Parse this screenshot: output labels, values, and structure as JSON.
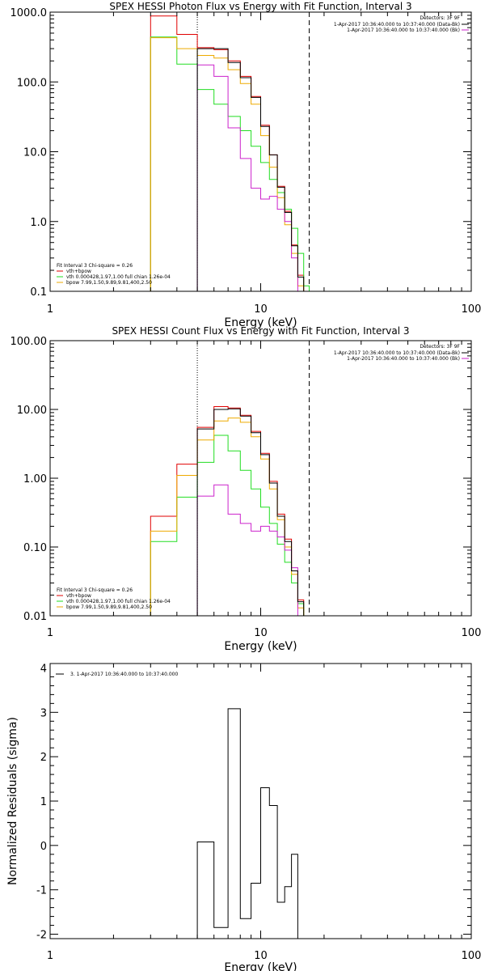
{
  "colors": {
    "background": "#ffffff",
    "axes": "#000000",
    "data": "#000000",
    "total": "#e00000",
    "vth": "#22dd22",
    "bpow": "#eeaa00",
    "bk_magenta": "#cc22cc"
  },
  "chart_data": [
    {
      "type": "line",
      "title": "SPEX HESSI Photon Flux vs Energy with Fit Function, Interval 3",
      "xlabel": "Energy (keV)",
      "ylabel": "",
      "xscale": "log",
      "yscale": "log",
      "xlim": [
        1,
        100
      ],
      "ylim": [
        0.1,
        1000
      ],
      "x_ticks": [
        "1",
        "10",
        "100"
      ],
      "y_ticks": [
        "0.1",
        "1.0",
        "10.0",
        "100.0",
        "1000.0"
      ],
      "vlines": [
        {
          "x": 5.0,
          "style": "dotted"
        },
        {
          "x": 17.0,
          "style": "dashed"
        }
      ],
      "edges": [
        3,
        4,
        5,
        6,
        7,
        8,
        9,
        10,
        11,
        12,
        13,
        14,
        15,
        16,
        17,
        18
      ],
      "series": [
        {
          "name": "",
          "color": "#000000",
          "values": [
            null,
            null,
            300,
            300,
            190,
            115,
            60,
            23,
            9,
            3.1,
            1.35,
            0.45,
            0.16,
            null,
            null
          ]
        },
        {
          "name": "vth+bpow",
          "color": "#e00000",
          "values": [
            880,
            480,
            310,
            290,
            200,
            120,
            62,
            24,
            9,
            3.2,
            1.4,
            0.46,
            0.17,
            null,
            null
          ]
        },
        {
          "name": "vth 0.000428,1.97,1.00  full chian 1.26e-04",
          "color": "#22dd22",
          "values": [
            440,
            180,
            78,
            48,
            32,
            20,
            12,
            7,
            4,
            2.6,
            1.5,
            0.8,
            0.35,
            0.12,
            null
          ]
        },
        {
          "name": "bpow 7.99,1.50,9.89,9.81,400,2.50",
          "color": "#eeaa00",
          "values": [
            430,
            300,
            240,
            220,
            150,
            95,
            48,
            17,
            6,
            2.2,
            0.9,
            0.35,
            0.12,
            null,
            null
          ]
        },
        {
          "name": "",
          "color": "#cc22cc",
          "values": [
            null,
            null,
            175,
            120,
            22,
            8,
            3,
            2.1,
            2.3,
            1.5,
            1.0,
            0.3,
            0.1,
            null,
            null
          ]
        }
      ],
      "legend": {
        "position": "top-right",
        "header": "Detectors: 3F 9F",
        "entries": [
          {
            "text": "1-Apr-2017 10:36:40.000 to 10:37:40.000 (Data-Bk)",
            "color": "#000000"
          },
          {
            "text": "1-Apr-2017 10:36:40.000 to 10:37:40.000 (Bk)",
            "color": "#cc22cc"
          }
        ]
      },
      "fit_legend": {
        "position": "bottom-left",
        "header": "Fit Interval 3   Chi-square = 0.26",
        "entries": [
          {
            "text": "vth+bpow",
            "color": "#e00000"
          },
          {
            "text": "vth 0.000428,1.97,1.00  full chian 1.26e-04",
            "color": "#22dd22"
          },
          {
            "text": "bpow 7.99,1.50,9.89,9.81,400,2.50",
            "color": "#eeaa00"
          }
        ]
      }
    },
    {
      "type": "line",
      "title": "SPEX HESSI Count Flux vs Energy with Fit Function, Interval 3",
      "xlabel": "Energy (keV)",
      "ylabel": "",
      "xscale": "log",
      "yscale": "log",
      "xlim": [
        1,
        100
      ],
      "ylim": [
        0.01,
        100
      ],
      "x_ticks": [
        "1",
        "10",
        "100"
      ],
      "y_ticks": [
        "0.01",
        "0.10",
        "1.00",
        "10.00",
        "100.00"
      ],
      "vlines": [
        {
          "x": 5.0,
          "style": "dotted"
        },
        {
          "x": 17.0,
          "style": "dashed"
        }
      ],
      "edges": [
        3,
        4,
        5,
        6,
        7,
        8,
        9,
        10,
        11,
        12,
        13,
        14,
        15,
        16,
        17,
        18
      ],
      "series": [
        {
          "name": "",
          "color": "#000000",
          "values": [
            null,
            null,
            5.2,
            10,
            10.2,
            8,
            4.6,
            2.2,
            0.85,
            0.28,
            0.12,
            0.045,
            0.016,
            null,
            null
          ]
        },
        {
          "name": "vth+bpow",
          "color": "#e00000",
          "values": [
            0.28,
            1.6,
            5.5,
            11,
            10.5,
            8.2,
            4.8,
            2.3,
            0.9,
            0.3,
            0.13,
            0.045,
            0.017,
            null,
            null
          ]
        },
        {
          "name": "vth 0.000428,1.97,1.00  full chian 1.26e-04",
          "color": "#22dd22",
          "values": [
            0.12,
            0.53,
            1.7,
            4.2,
            2.5,
            1.3,
            0.7,
            0.38,
            0.22,
            0.11,
            0.06,
            0.03,
            0.015,
            0.01,
            null
          ]
        },
        {
          "name": "bpow 7.99,1.50,9.89,9.81,400,2.50",
          "color": "#eeaa00",
          "values": [
            0.17,
            1.1,
            3.6,
            6.8,
            7.5,
            6.5,
            4.0,
            1.9,
            0.7,
            0.25,
            0.1,
            0.04,
            0.013,
            null,
            null
          ]
        },
        {
          "name": "",
          "color": "#cc22cc",
          "values": [
            null,
            null,
            0.55,
            0.8,
            0.3,
            0.22,
            0.17,
            0.2,
            0.17,
            0.14,
            0.09,
            0.05,
            null,
            null,
            null
          ]
        }
      ],
      "legend": {
        "position": "top-right",
        "header": "Detectors: 3F 9F",
        "entries": [
          {
            "text": "1-Apr-2017 10:36:40.000 to 10:37:40.000 (Data-Bk)",
            "color": "#000000"
          },
          {
            "text": "1-Apr-2017 10:36:40.000 to 10:37:40.000 (Bk)",
            "color": "#cc22cc"
          }
        ]
      },
      "fit_legend": {
        "position": "bottom-left",
        "header": "Fit Interval 3   Chi-square = 0.26",
        "entries": [
          {
            "text": "vth+bpow",
            "color": "#e00000"
          },
          {
            "text": "vth 0.000428,1.97,1.00  full chian 1.26e-04",
            "color": "#22dd22"
          },
          {
            "text": "bpow 7.99,1.50,9.89,9.81,400,2.50",
            "color": "#eeaa00"
          }
        ]
      }
    },
    {
      "type": "line",
      "title": "",
      "xlabel": "Energy (keV)",
      "ylabel": "Normalized Residuals (sigma)",
      "xscale": "log",
      "yscale": "linear",
      "xlim": [
        1,
        100
      ],
      "ylim": [
        -2.1,
        4.1
      ],
      "x_ticks": [
        "1",
        "10",
        "100"
      ],
      "y_ticks": [
        "-2",
        "-1",
        "0",
        "1",
        "2",
        "3",
        "4"
      ],
      "edges": [
        5,
        6,
        7,
        8,
        9,
        10,
        11,
        12,
        13,
        14,
        15,
        16,
        17
      ],
      "series": [
        {
          "name": "3. 1-Apr-2017 10:36:40.000 to 10:37:40.000",
          "color": "#000000",
          "values": [
            0.08,
            -1.85,
            3.08,
            -1.65,
            -0.85,
            1.3,
            0.9,
            -1.28,
            -0.93,
            -0.2,
            null,
            null
          ]
        }
      ],
      "legend": {
        "position": "top-left",
        "entries": [
          {
            "text": "3. 1-Apr-2017 10:36:40.000 to 10:37:40.000",
            "color": "#000000"
          }
        ]
      }
    }
  ]
}
